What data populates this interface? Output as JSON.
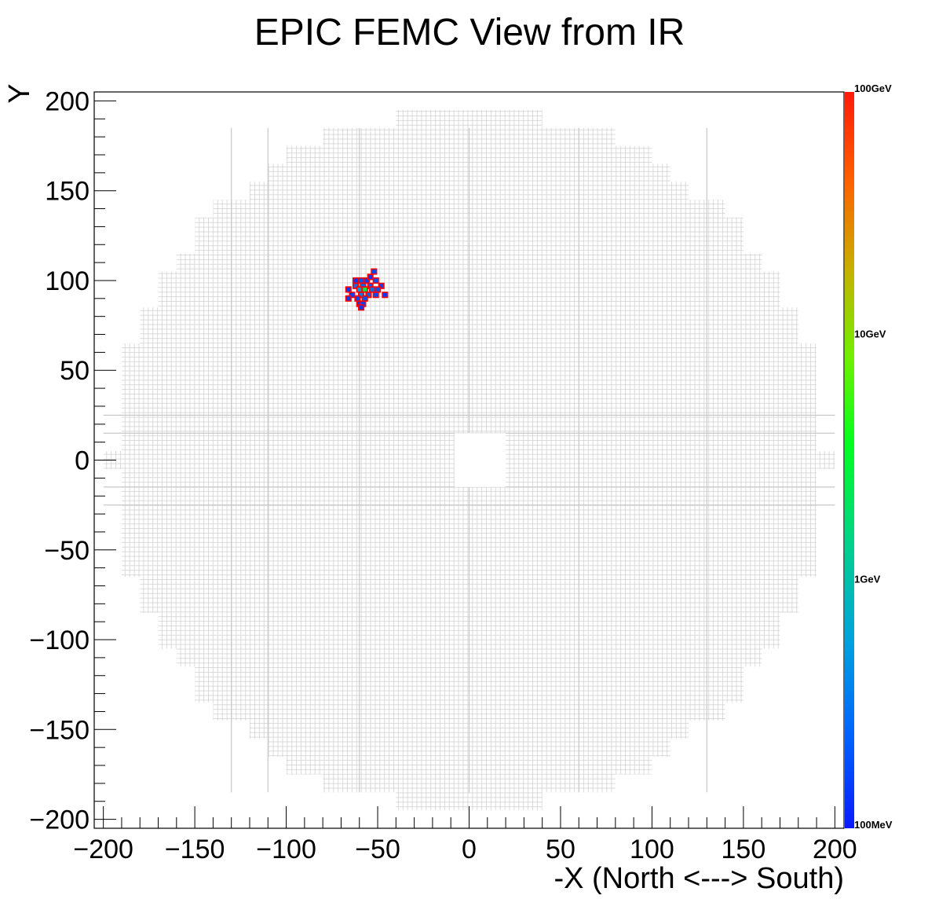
{
  "chart_data": {
    "type": "heatmap",
    "title": "EPIC FEMC View from IR",
    "xlabel": "-X (North <---> South)",
    "ylabel": "Y",
    "xlim": [
      -205,
      205
    ],
    "ylim": [
      -205,
      205
    ],
    "x_ticks": [
      "−200",
      "−150",
      "−100",
      "−50",
      "0",
      "50",
      "100",
      "150",
      "200"
    ],
    "x_tick_values": [
      -200,
      -150,
      -100,
      -50,
      0,
      50,
      100,
      150,
      200
    ],
    "y_ticks": [
      "200",
      "150",
      "100",
      "50",
      "0",
      "−50",
      "−100",
      "−150",
      "−200"
    ],
    "y_tick_values": [
      200,
      150,
      100,
      50,
      0,
      -50,
      -100,
      -150,
      -200
    ],
    "colorbar": {
      "scale": "log",
      "labels": [
        "100GeV",
        "10GeV",
        "1GeV",
        "100MeV"
      ],
      "label_values_gev": [
        100,
        10,
        1,
        0.1
      ],
      "range_gev": [
        0.1,
        100
      ]
    },
    "detector": {
      "outer_radius": 195,
      "beam_hole": {
        "x": [
          -8,
          20
        ],
        "y": [
          -15,
          15
        ]
      },
      "tower_pitch": 2.6
    },
    "hits": [
      {
        "x": -52,
        "y": 105,
        "energy_gev": 0.18
      },
      {
        "x": -62,
        "y": 100,
        "energy_gev": 0.15
      },
      {
        "x": -59,
        "y": 100,
        "energy_gev": 0.2
      },
      {
        "x": -56,
        "y": 100,
        "energy_gev": 0.16
      },
      {
        "x": -51,
        "y": 100,
        "energy_gev": 0.2
      },
      {
        "x": -54,
        "y": 102,
        "energy_gev": 0.15
      },
      {
        "x": -62,
        "y": 97,
        "energy_gev": 0.3
      },
      {
        "x": -58,
        "y": 97,
        "energy_gev": 0.25
      },
      {
        "x": -54,
        "y": 97,
        "energy_gev": 0.22
      },
      {
        "x": -48,
        "y": 97,
        "energy_gev": 0.17
      },
      {
        "x": -66,
        "y": 95,
        "energy_gev": 0.15
      },
      {
        "x": -60,
        "y": 95,
        "energy_gev": 0.5
      },
      {
        "x": -57,
        "y": 95,
        "energy_gev": 2.5
      },
      {
        "x": -53,
        "y": 95,
        "energy_gev": 0.3
      },
      {
        "x": -50,
        "y": 95,
        "energy_gev": 0.2
      },
      {
        "x": -64,
        "y": 92,
        "energy_gev": 0.16
      },
      {
        "x": -59,
        "y": 92,
        "energy_gev": 0.35
      },
      {
        "x": -55,
        "y": 92,
        "energy_gev": 0.25
      },
      {
        "x": -51,
        "y": 92,
        "energy_gev": 0.18
      },
      {
        "x": -46,
        "y": 92,
        "energy_gev": 0.15
      },
      {
        "x": -66,
        "y": 90,
        "energy_gev": 0.15
      },
      {
        "x": -61,
        "y": 90,
        "energy_gev": 0.18
      },
      {
        "x": -57,
        "y": 90,
        "energy_gev": 0.2
      },
      {
        "x": -60,
        "y": 87,
        "energy_gev": 0.15
      },
      {
        "x": -58,
        "y": 87,
        "energy_gev": 0.16
      },
      {
        "x": -59,
        "y": 85,
        "energy_gev": 0.15
      }
    ]
  }
}
